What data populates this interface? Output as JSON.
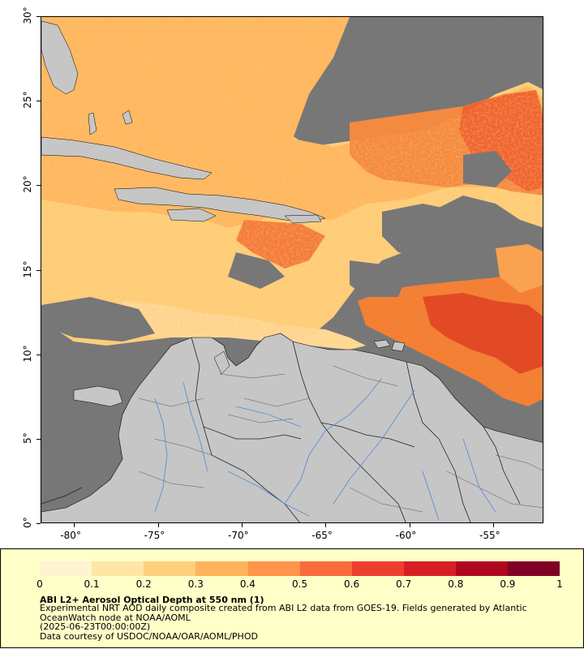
{
  "map": {
    "title": "ABI L2+ Aerosol Optical Depth at 550 nm (1)",
    "x_ticks": [
      "-80°",
      "-75°",
      "-70°",
      "-65°",
      "-60°",
      "-55°"
    ],
    "y_ticks": [
      "0°",
      "5°",
      "10°",
      "15°",
      "20°",
      "25°",
      "30°"
    ],
    "x_range": [
      -82,
      -52
    ],
    "y_range": [
      0,
      30
    ],
    "colors": {
      "nodata": "#777777",
      "land": "#c6c6c6",
      "rivers": "#5b8fd6",
      "borders": "#222222"
    }
  },
  "legend": {
    "colorbar_ticks": [
      "0",
      "0.1",
      "0.2",
      "0.3",
      "0.4",
      "0.5",
      "0.6",
      "0.7",
      "0.8",
      "0.9",
      "1"
    ],
    "colorbar_range": [
      0,
      1
    ],
    "colorbar_colors": [
      "#fff3d2",
      "#ffe6a5",
      "#ffd07a",
      "#ffb45c",
      "#ff944a",
      "#fb6a3c",
      "#ed3f2e",
      "#d61f22",
      "#b1061f",
      "#800026"
    ],
    "title": "ABI L2+ Aerosol Optical Depth at 550 nm (1)",
    "description_lines": [
      "Experimental NRT AOD daily composite created from ABI L2 data from GOES-19. Fields generated by Atlantic OceanWatch node at NOAA/AOML",
      "(2025-06-23T00:00:00Z)",
      "Data courtesy of USDOC/NOAA/OAR/AOML/PHOD"
    ]
  }
}
